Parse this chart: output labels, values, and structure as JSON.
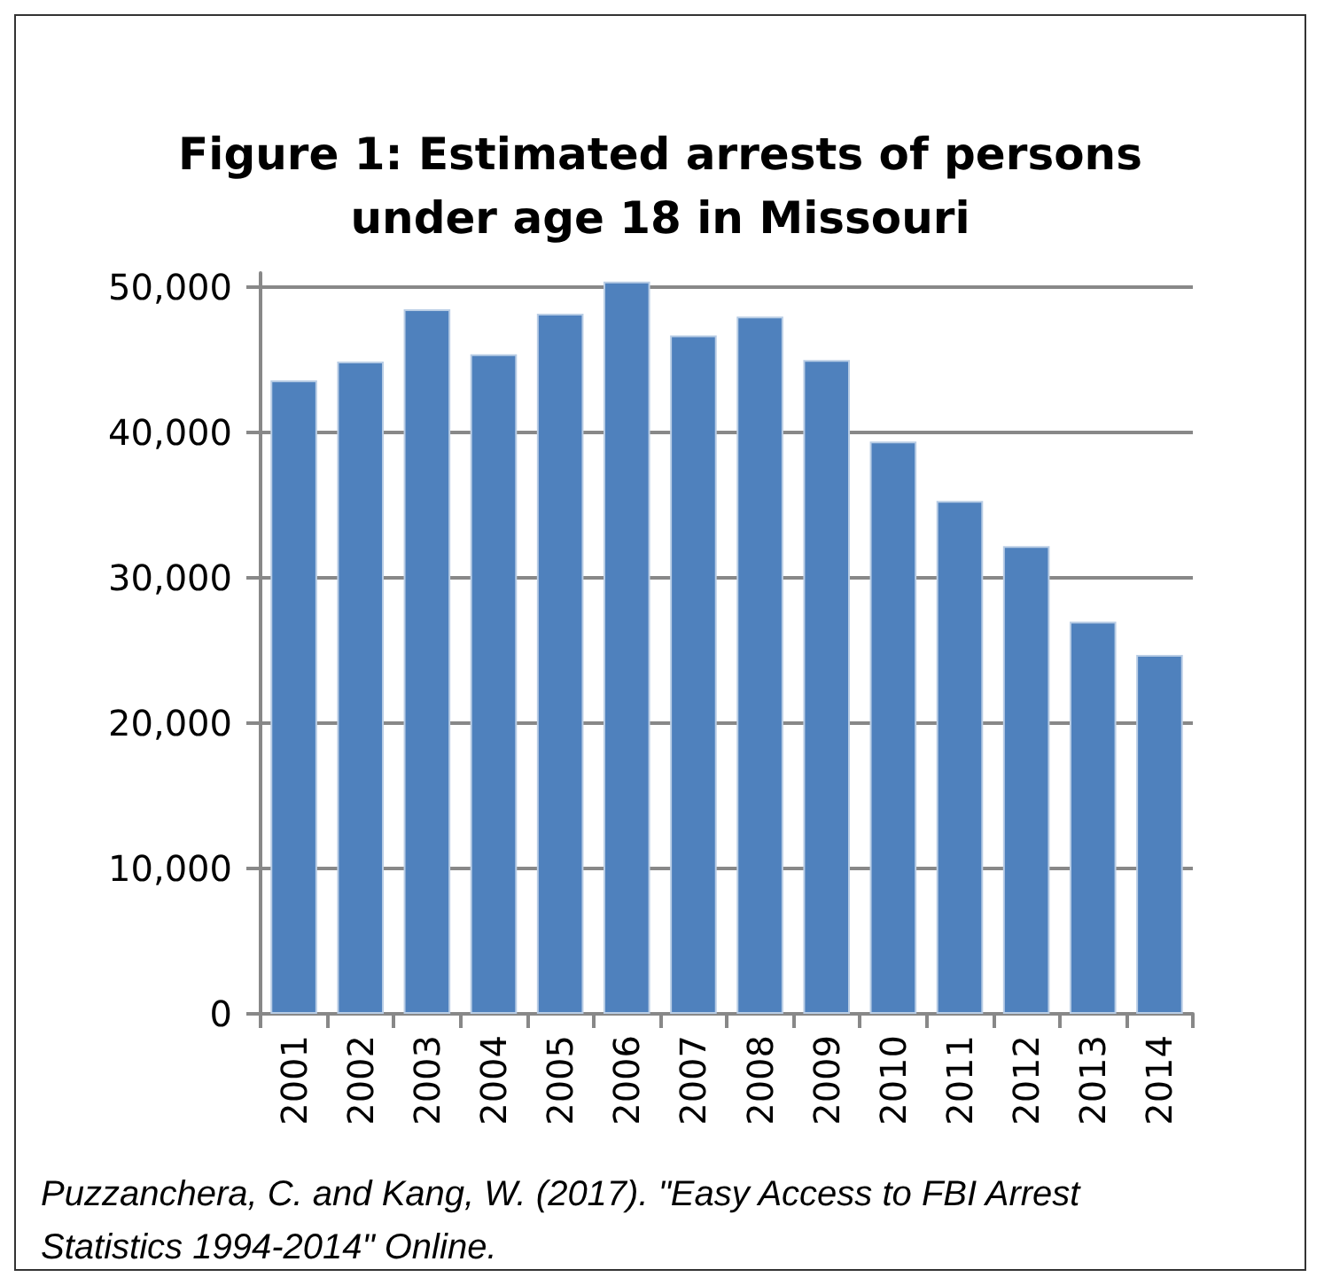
{
  "chart_data": {
    "type": "bar",
    "title": "Figure 1: Estimated arrests of persons\nunder age 18 in Missouri",
    "categories": [
      "2001",
      "2002",
      "2003",
      "2004",
      "2005",
      "2006",
      "2007",
      "2008",
      "2009",
      "2010",
      "2011",
      "2012",
      "2013",
      "2014"
    ],
    "values": [
      43600,
      44900,
      48500,
      45400,
      48200,
      50400,
      46700,
      48000,
      45000,
      39400,
      35300,
      32200,
      27000,
      24700
    ],
    "color": "#4f81bd",
    "ylim": [
      0,
      51000
    ],
    "yticks": [
      0,
      {
        "value": 10000,
        "label": "10,000"
      },
      {
        "value": 20000,
        "label": "20,000"
      },
      {
        "value": 30000,
        "label": "30,000"
      },
      {
        "value": 40000,
        "label": "40,000"
      },
      {
        "value": 50000,
        "label": "50,000"
      }
    ],
    "grid": "y",
    "annotations": [
      "Puzzanchera, C. and Kang, W. (2017). \"Easy Access to FBI Arrest Statistics 1994-2014\" Online."
    ]
  }
}
